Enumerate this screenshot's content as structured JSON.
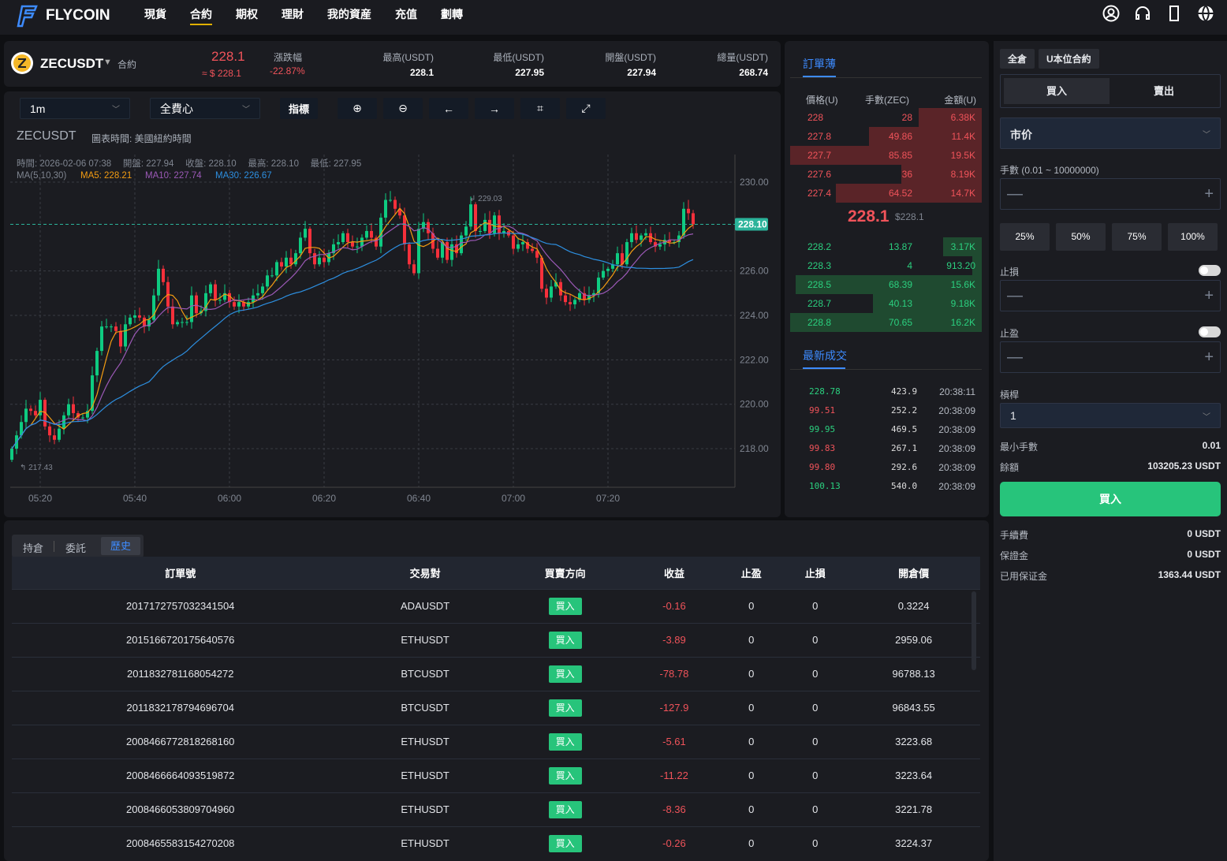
{
  "nav": {
    "brand": "FLYCOIN",
    "items": [
      "現貨",
      "合約",
      "期权",
      "理財",
      "我的資産",
      "充值",
      "劃轉"
    ],
    "active": 1
  },
  "ticker": {
    "symbol": "ZECUSDT",
    "type": "合約",
    "price": "228.1",
    "price_usd": "≈ $ 228.1",
    "change_label": "漲跌幅",
    "change": "-22.87%",
    "stats": [
      {
        "label": "最高(USDT)",
        "value": "228.1"
      },
      {
        "label": "最低(USDT)",
        "value": "227.95"
      },
      {
        "label": "開盤(USDT)",
        "value": "227.94"
      },
      {
        "label": "總量(USDT)",
        "value": "268.74"
      }
    ]
  },
  "toolbar": {
    "interval": "1m",
    "mode": "全費心",
    "indicators": "指標"
  },
  "chart_info": {
    "symbol": "ZECUSDT",
    "timezone": "圖表時間: 美國紐約時間",
    "ohlc": "時間: 2026-02-06 07:38　 開盤: 227.94　 收盤: 228.10　 最高: 228.10　 最低: 227.95",
    "ma_label": "MA(5,10,30)",
    "ma5": "MA5: 228.21",
    "ma10": "MA10: 227.74",
    "ma30": "MA30: 226.67"
  },
  "chart_data": {
    "type": "candlestick",
    "start_time": "05:14",
    "interval_min": 1,
    "first_open": 217.5,
    "close": [
      218.0,
      218.6,
      219.2,
      219.8,
      219.7,
      219.5,
      220.2,
      219.0,
      218.6,
      218.4,
      218.9,
      219.5,
      220.0,
      219.6,
      219.4,
      219.4,
      219.7,
      221.3,
      222.4,
      223.5,
      223.5,
      223.5,
      223.3,
      222.6,
      223.6,
      223.9,
      224.0,
      223.9,
      223.5,
      223.8,
      224.9,
      226.1,
      225.5,
      224.4,
      223.6,
      223.7,
      223.7,
      223.7,
      224.9,
      224.1,
      224.2,
      225.0,
      225.4,
      224.7,
      224.7,
      225.0,
      224.6,
      224.4,
      224.6,
      224.4,
      224.6,
      224.9,
      225.0,
      225.3,
      225.8,
      225.8,
      226.4,
      226.2,
      226.6,
      226.3,
      226.8,
      227.5,
      227.9,
      226.8,
      226.3,
      226.6,
      226.4,
      226.8,
      227.2,
      227.3,
      227.7,
      227.3,
      227.1,
      227.1,
      227.5,
      227.8,
      227.5,
      227.1,
      228.4,
      229.2,
      229.2,
      228.8,
      228.5,
      227.2,
      226.3,
      225.9,
      227.9,
      228.2,
      227.7,
      227.0,
      226.6,
      227.3,
      226.5,
      227.2,
      226.8,
      227.6,
      228.0,
      229.0,
      227.8,
      227.8,
      228.3,
      227.7,
      228.5,
      227.7,
      227.8,
      227.6,
      227.0,
      227.2,
      227.3,
      227.0,
      226.9,
      226.6,
      225.2,
      224.8,
      225.3,
      225.5,
      224.9,
      224.6,
      224.5,
      224.7,
      225.0,
      224.7,
      224.9,
      225.0,
      225.7,
      226.0,
      226.1,
      226.3,
      226.8,
      226.3,
      227.3,
      227.7,
      227.4,
      227.6,
      227.7,
      227.3,
      227.1,
      227.2,
      227.4,
      227.3,
      227.3,
      227.6,
      228.8,
      228.6,
      228.1
    ],
    "ylim": [
      216.4,
      231.3
    ],
    "yticks": [
      "230.00",
      "226.00",
      "224.00",
      "222.00",
      "220.00",
      "218.00"
    ],
    "xticks": [
      "05:20",
      "05:40",
      "06:00",
      "06:20",
      "06:40",
      "07:00",
      "07:20"
    ],
    "last_price": "228.10",
    "max_label": "229.03",
    "min_label": "217.43",
    "colors": {
      "up": "#0ecb81",
      "down": "#f6303b",
      "ma5": "#f39c12",
      "ma10": "#9b59b6",
      "ma30": "#2d8fe0"
    }
  },
  "orderbook": {
    "title": "訂單薄",
    "headers": [
      "價格(U)",
      "手數(ZEC)",
      "金額(U)"
    ],
    "asks": [
      [
        "228",
        "28",
        "6.38K",
        0.33
      ],
      [
        "227.8",
        "49.86",
        "11.4K",
        0.59
      ],
      [
        "227.7",
        "85.85",
        "19.5K",
        1
      ],
      [
        "227.6",
        "36",
        "8.19K",
        0.42
      ],
      [
        "227.4",
        "64.52",
        "14.7K",
        0.76
      ]
    ],
    "mid": "228.1",
    "mid_usd": "$228.1",
    "bids": [
      [
        "228.2",
        "13.87",
        "3.17K",
        0.2
      ],
      [
        "228.3",
        "4",
        "913.20",
        0.05
      ],
      [
        "228.5",
        "68.39",
        "15.6K",
        0.97
      ],
      [
        "228.7",
        "40.13",
        "9.18K",
        0.57
      ],
      [
        "228.8",
        "70.65",
        "16.2K",
        1
      ]
    ]
  },
  "trades": {
    "title": "最新成交",
    "rows": [
      [
        "228.78",
        "423.9",
        "20:38:11",
        "up"
      ],
      [
        "99.51",
        "252.2",
        "20:38:09",
        "down"
      ],
      [
        "99.95",
        "469.5",
        "20:38:09",
        "up"
      ],
      [
        "99.83",
        "267.1",
        "20:38:09",
        "down"
      ],
      [
        "99.80",
        "292.6",
        "20:38:09",
        "down"
      ],
      [
        "100.13",
        "540.0",
        "20:38:09",
        "up"
      ]
    ]
  },
  "trade": {
    "margin_mode": "全倉",
    "contract": "U本位合約",
    "buy": "買入",
    "sell": "賣出",
    "order_type": "市价",
    "qty_label": "手數  (0.01 ~ 10000000)",
    "pcts": [
      "25%",
      "50%",
      "75%",
      "100%"
    ],
    "sl": "止損",
    "tp": "止盈",
    "leverage_label": "槓桿",
    "leverage": "1",
    "min_qty_label": "最小手數",
    "min_qty": "0.01",
    "balance_label": "餘額",
    "balance": "103205.23 USDT",
    "submit": "買入",
    "fee_label": "手續費",
    "fee": "0 USDT",
    "margin_label": "保證金",
    "margin": "0 USDT",
    "used_label": "已用保证金",
    "used": "1363.44 USDT"
  },
  "orders": {
    "tabs": [
      "持倉",
      "委託",
      "歷史"
    ],
    "active": 2,
    "headers": [
      "訂單號",
      "交易對",
      "買賣方向",
      "收益",
      "止盈",
      "止損",
      "開倉價"
    ],
    "rows": [
      [
        "2017172757032341504",
        "ADAUSDT",
        "買入",
        "-0.16",
        "0",
        "0",
        "0.3224"
      ],
      [
        "2015166720175640576",
        "ETHUSDT",
        "買入",
        "-3.89",
        "0",
        "0",
        "2959.06"
      ],
      [
        "2011832781168054272",
        "BTCUSDT",
        "買入",
        "-78.78",
        "0",
        "0",
        "96788.13"
      ],
      [
        "2011832178794696704",
        "BTCUSDT",
        "買入",
        "-127.9",
        "0",
        "0",
        "96843.55"
      ],
      [
        "2008466772818268160",
        "ETHUSDT",
        "買入",
        "-5.61",
        "0",
        "0",
        "3223.68"
      ],
      [
        "2008466664093519872",
        "ETHUSDT",
        "買入",
        "-11.22",
        "0",
        "0",
        "3223.64"
      ],
      [
        "2008466053809704960",
        "ETHUSDT",
        "買入",
        "-8.36",
        "0",
        "0",
        "3221.78"
      ],
      [
        "2008465583154270208",
        "ETHUSDT",
        "買入",
        "-0.26",
        "0",
        "0",
        "3224.37"
      ]
    ]
  }
}
